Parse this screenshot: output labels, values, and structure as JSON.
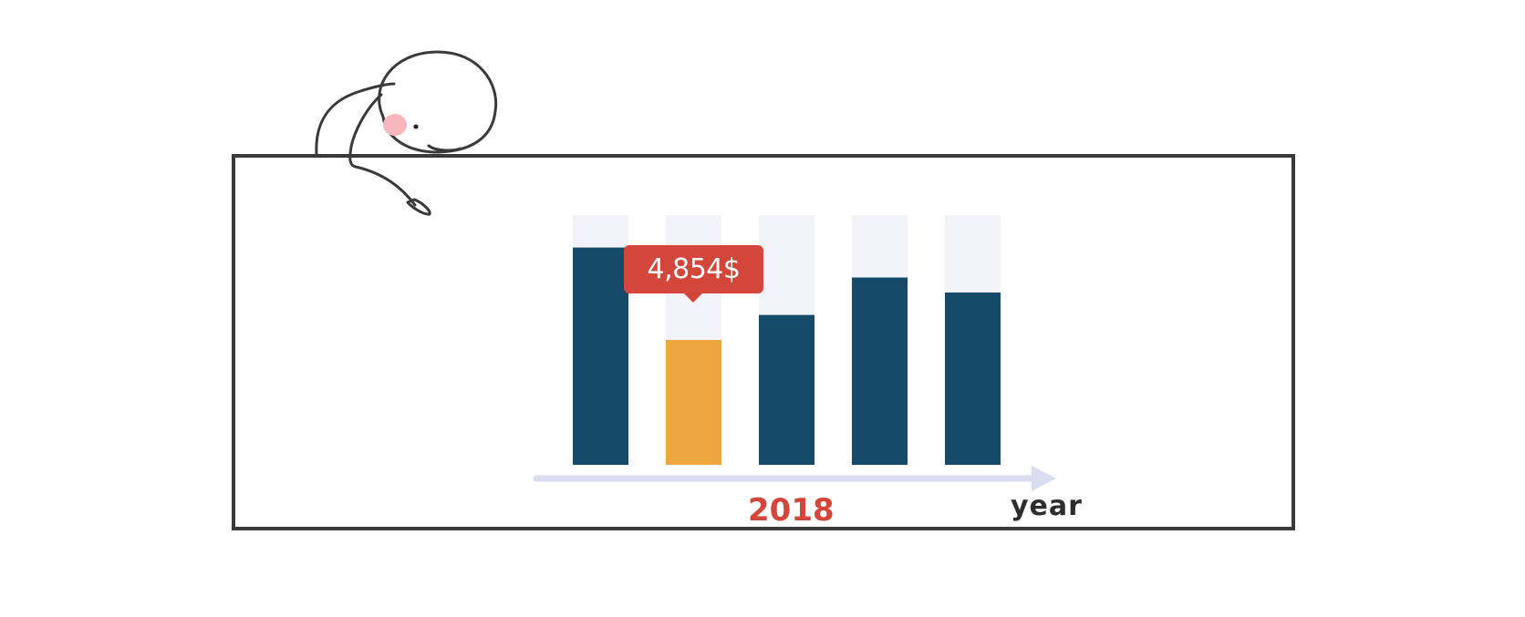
{
  "colors": {
    "bar": "#154a69",
    "highlight": "#eea63e",
    "track": "#f2f3f8",
    "tooltip": "#d4453a",
    "axis": "#dadcef",
    "frame": "#3a3a3a"
  },
  "chart_data": {
    "type": "bar",
    "categories": [
      "",
      "2018",
      "",
      "",
      ""
    ],
    "values": [
      87,
      50,
      60,
      75,
      69
    ],
    "ylim": [
      0,
      100
    ],
    "highlight_index": 1,
    "tooltip_text": "4,854$",
    "selected_category": "2018",
    "xlabel": "year",
    "grid": false,
    "legend": "none"
  },
  "illustration": {
    "character": "doodle-figure-peeking-over-frame"
  }
}
